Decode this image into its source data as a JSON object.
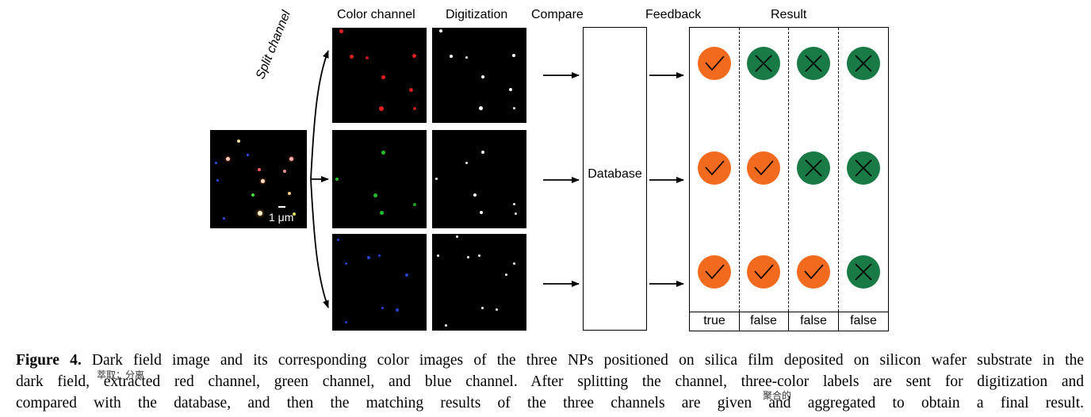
{
  "headers": {
    "color_channel": "Color channel",
    "digitization": "Digitization",
    "compare": "Compare",
    "feedback": "Feedback",
    "result": "Result"
  },
  "split_channel": "Split channel",
  "scale_bar": "1 μm",
  "database": "Database",
  "results": {
    "labels": [
      "true",
      "false",
      "false",
      "false"
    ],
    "rows": [
      [
        "check",
        "cross",
        "cross",
        "cross"
      ],
      [
        "check",
        "check",
        "cross",
        "cross"
      ],
      [
        "check",
        "check",
        "check",
        "cross"
      ]
    ]
  },
  "colors": {
    "check": "#f26a1e",
    "cross": "#1a7a45",
    "red_np": "#e21f1f",
    "green_np": "#1fbf2a",
    "blue_np": "#2a3fd6"
  },
  "caption": {
    "figure_label": "Figure 4.",
    "line1": "Dark field image and its corresponding color images of the three NPs positioned on silica film deposited on silicon wafer substrate in the",
    "line2": "dark field, extracted red channel, green channel, and blue channel. After splitting the channel, three-color labels are sent for digitization and",
    "line3": "compared with the database, and then the matching results of the three channels are given and aggregated to obtain a final result."
  },
  "annotations": {
    "extracted_note": "萃取；分离",
    "aggregated_note": "聚合的"
  }
}
